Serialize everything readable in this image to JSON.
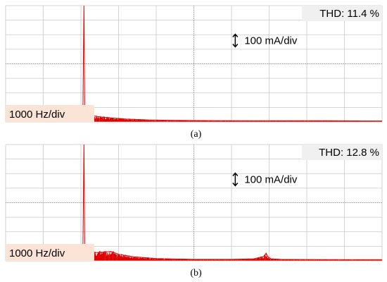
{
  "figure": {
    "background": "#ffffff",
    "grid_color": "#c8c8c8",
    "trace_color": "#e00000",
    "label_bg": "#fbe3d6",
    "thd_bg": "#f0f0f0"
  },
  "chart_data": [
    {
      "type": "line",
      "caption": "(a)",
      "thd_label": "THD: 11.4 %",
      "amplitude_scale": "100 mA/div",
      "frequency_scale": "1000 Hz/div",
      "grid": true,
      "divisions": {
        "x": 10,
        "y": 8
      },
      "xlim_div": [
        0,
        10
      ],
      "ylim_div": [
        0,
        8
      ],
      "series": [
        {
          "x": [
            2.05,
            2.08,
            2.1,
            2.13,
            2.2,
            2.3,
            2.5,
            2.8,
            3.2,
            3.8,
            4.5,
            5.5,
            6.5,
            7.5,
            8.5,
            9.5,
            10.0
          ],
          "y": [
            0.05,
            8.0,
            0.9,
            0.6,
            0.48,
            0.42,
            0.35,
            0.28,
            0.2,
            0.14,
            0.11,
            0.09,
            0.08,
            0.08,
            0.08,
            0.07,
            0.07
          ]
        }
      ]
    },
    {
      "type": "line",
      "caption": "(b)",
      "thd_label": "THD: 12.8 %",
      "amplitude_scale": "100 mA/div",
      "frequency_scale": "1000 Hz/div",
      "grid": true,
      "divisions": {
        "x": 10,
        "y": 8
      },
      "xlim_div": [
        0,
        10
      ],
      "ylim_div": [
        0,
        8
      ],
      "series": [
        {
          "x": [
            2.05,
            2.08,
            2.1,
            2.13,
            2.3,
            2.6,
            2.8,
            3.0,
            3.4,
            4.0,
            5.0,
            6.0,
            6.6,
            6.85,
            6.92,
            6.97,
            7.05,
            7.3,
            8.0,
            9.0,
            10.0
          ],
          "y": [
            0.05,
            8.0,
            0.9,
            0.6,
            0.55,
            0.6,
            0.65,
            0.45,
            0.28,
            0.16,
            0.1,
            0.1,
            0.14,
            0.3,
            0.52,
            0.28,
            0.14,
            0.1,
            0.09,
            0.08,
            0.08
          ]
        }
      ]
    }
  ]
}
